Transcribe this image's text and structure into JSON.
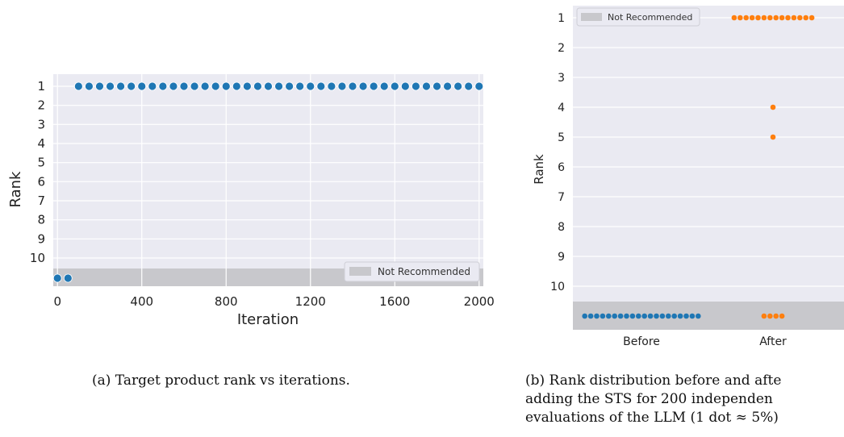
{
  "chart_data": [
    {
      "type": "scatter",
      "title": "",
      "xlabel": "Iteration",
      "ylabel": "Rank",
      "xlim": [
        -20,
        2020
      ],
      "ylim": [
        1,
        10
      ],
      "xticks": [
        "0",
        "400",
        "800",
        "1200",
        "1600",
        "2000"
      ],
      "yticks": [
        "1",
        "2",
        "3",
        "4",
        "5",
        "6",
        "7",
        "8",
        "9",
        "10"
      ],
      "grid": true,
      "legend": "bottom-right",
      "legend_entries": [
        "Not Recommended"
      ],
      "color": "#1f77b4",
      "not_recommended_points": [
        0,
        50
      ],
      "ranked_points": {
        "x_start": 100,
        "x_step": 50,
        "x_end": 2000,
        "rank": 1
      },
      "caption": "(a) Target product rank vs iterations."
    },
    {
      "type": "scatter",
      "title": "",
      "xlabel": "",
      "ylabel": "Rank",
      "categories": [
        "Before",
        "After"
      ],
      "yticks": [
        "1",
        "2",
        "3",
        "4",
        "5",
        "6",
        "7",
        "8",
        "9",
        "10"
      ],
      "grid": true,
      "legend": "top-left",
      "legend_entries": [
        "Not Recommended"
      ],
      "series": [
        {
          "category": "Before",
          "color": "#1f77b4",
          "points": [
            {
              "rank": "Not Recommended",
              "dots": 20
            }
          ]
        },
        {
          "category": "After",
          "color": "#ff7f0e",
          "points": [
            {
              "rank": 1,
              "dots": 14
            },
            {
              "rank": 4,
              "dots": 1
            },
            {
              "rank": 5,
              "dots": 1
            },
            {
              "rank": "Not Recommended",
              "dots": 4
            }
          ]
        }
      ],
      "caption": [
        "(b) Rank distribution before and afte",
        "adding the STS for 200 independen",
        "evaluations of the LLM (1 dot ≈ 5%)"
      ]
    }
  ]
}
